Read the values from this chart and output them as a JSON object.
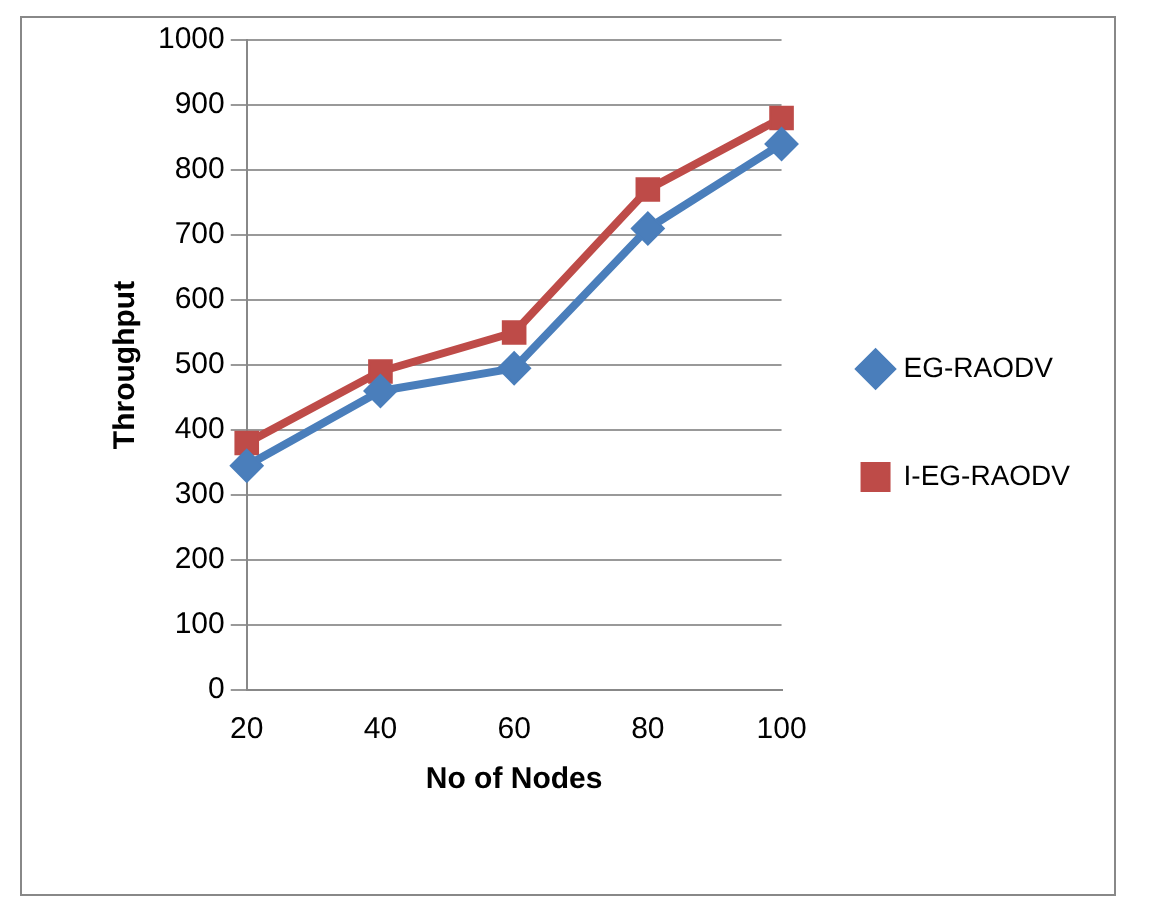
{
  "chart_data": {
    "type": "line",
    "xlabel": "No of Nodes",
    "ylabel": "Throughput",
    "categories": [
      "20",
      "40",
      "60",
      "80",
      "100"
    ],
    "series": [
      {
        "name": "EG-RAODV",
        "color": "#4a7ebb",
        "values": [
          345,
          460,
          495,
          710,
          840
        ]
      },
      {
        "name": "I-EG-RAODV",
        "color": "#be4b48",
        "values": [
          380,
          490,
          550,
          770,
          880
        ],
        "marker": "square"
      }
    ],
    "marker": "diamond",
    "ylim": [
      0,
      1000
    ],
    "yticks": [
      0,
      100,
      200,
      300,
      400,
      500,
      600,
      700,
      800,
      900,
      1000
    ],
    "grid": "y",
    "legend": "right"
  }
}
